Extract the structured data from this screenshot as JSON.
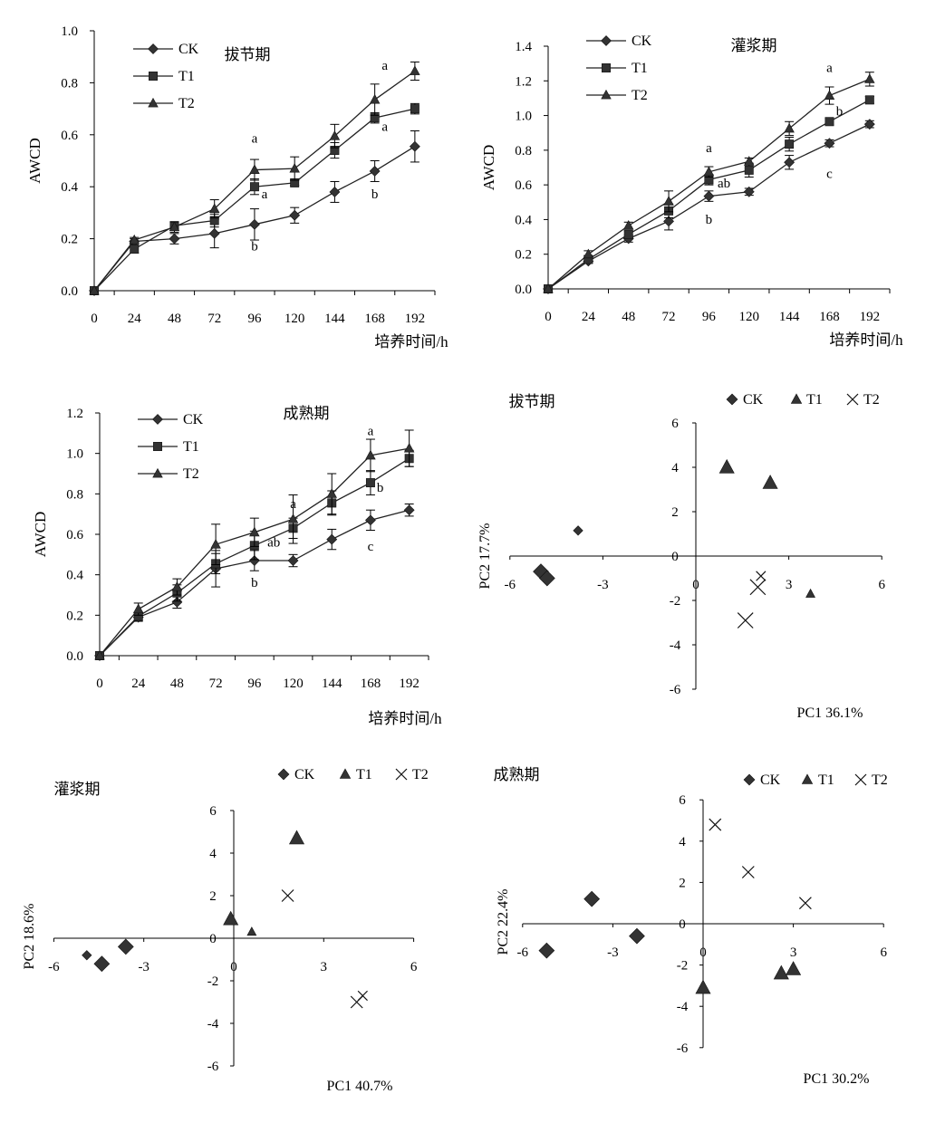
{
  "chart_data": [
    {
      "type": "line",
      "title": "拔节期",
      "xlabel": "培养时间/h",
      "ylabel": "AWCD",
      "x": [
        0,
        24,
        48,
        72,
        96,
        120,
        144,
        168,
        192
      ],
      "xlim": [
        0,
        204
      ],
      "ylim": [
        0,
        1.0
      ],
      "yticks": [
        "0.0",
        "0.2",
        "0.4",
        "0.6",
        "0.8",
        "1.0"
      ],
      "grid": false,
      "legend_position": "top-left",
      "series": [
        {
          "name": "CK",
          "marker": "diamond",
          "values": [
            0,
            0.19,
            0.2,
            0.22,
            0.255,
            0.29,
            0.38,
            0.46,
            0.555
          ],
          "errors": [
            0,
            0.01,
            0.02,
            0.055,
            0.06,
            0.03,
            0.04,
            0.04,
            0.06
          ]
        },
        {
          "name": "T1",
          "marker": "square",
          "values": [
            0,
            0.16,
            0.25,
            0.27,
            0.4,
            0.415,
            0.54,
            0.665,
            0.7
          ],
          "errors": [
            0,
            0.015,
            0.015,
            0.025,
            0.03,
            0.01,
            0.03,
            0.02,
            0.02
          ]
        },
        {
          "name": "T2",
          "marker": "triangle",
          "values": [
            0,
            0.195,
            0.245,
            0.315,
            0.465,
            0.47,
            0.595,
            0.735,
            0.845
          ],
          "errors": [
            0,
            0.01,
            0.02,
            0.035,
            0.04,
            0.045,
            0.045,
            0.06,
            0.035
          ]
        }
      ],
      "annotations": [
        {
          "text": "a",
          "x": 96,
          "y": 0.57
        },
        {
          "text": "a",
          "x": 102,
          "y": 0.355
        },
        {
          "text": "b",
          "x": 96,
          "y": 0.155
        },
        {
          "text": "a",
          "x": 174,
          "y": 0.85
        },
        {
          "text": "a",
          "x": 174,
          "y": 0.615
        },
        {
          "text": "b",
          "x": 168,
          "y": 0.355
        }
      ]
    },
    {
      "type": "line",
      "title": "灌浆期",
      "xlabel": "培养时间/h",
      "ylabel": "AWCD",
      "x": [
        0,
        24,
        48,
        72,
        96,
        120,
        144,
        168,
        192
      ],
      "xlim": [
        0,
        204
      ],
      "ylim": [
        0,
        1.4
      ],
      "yticks": [
        "0.0",
        "0.2",
        "0.4",
        "0.6",
        "0.8",
        "1.0",
        "1.2",
        "1.4"
      ],
      "grid": false,
      "legend_position": "top-left",
      "series": [
        {
          "name": "CK",
          "marker": "diamond",
          "values": [
            0,
            0.16,
            0.29,
            0.39,
            0.535,
            0.56,
            0.73,
            0.84,
            0.95
          ],
          "errors": [
            0,
            0.01,
            0.02,
            0.05,
            0.03,
            0.02,
            0.04,
            0.02,
            0.02
          ]
        },
        {
          "name": "T1",
          "marker": "square",
          "values": [
            0,
            0.17,
            0.315,
            0.45,
            0.63,
            0.685,
            0.835,
            0.965,
            1.09
          ],
          "errors": [
            0,
            0.02,
            0.02,
            0.04,
            0.03,
            0.04,
            0.04,
            0.02,
            0.02
          ]
        },
        {
          "name": "T2",
          "marker": "triangle",
          "values": [
            0,
            0.2,
            0.365,
            0.505,
            0.675,
            0.735,
            0.925,
            1.115,
            1.21
          ],
          "errors": [
            0,
            0.02,
            0.02,
            0.06,
            0.03,
            0.02,
            0.04,
            0.05,
            0.04
          ]
        }
      ],
      "annotations": [
        {
          "text": "a",
          "x": 96,
          "y": 0.79
        },
        {
          "text": "ab",
          "x": 105,
          "y": 0.585
        },
        {
          "text": "b",
          "x": 96,
          "y": 0.375
        },
        {
          "text": "a",
          "x": 168,
          "y": 1.25
        },
        {
          "text": "b",
          "x": 174,
          "y": 1.0
        },
        {
          "text": "c",
          "x": 168,
          "y": 0.64
        }
      ]
    },
    {
      "type": "line",
      "title": "成熟期",
      "xlabel": "培养时间/h",
      "ylabel": "AWCD",
      "x": [
        0,
        24,
        48,
        72,
        96,
        120,
        144,
        168,
        192
      ],
      "xlim": [
        0,
        204
      ],
      "ylim": [
        0,
        1.2
      ],
      "yticks": [
        "0.0",
        "0.2",
        "0.4",
        "0.6",
        "0.8",
        "1.0",
        "1.2"
      ],
      "grid": false,
      "legend_position": "top-left",
      "series": [
        {
          "name": "CK",
          "marker": "diamond",
          "values": [
            0,
            0.19,
            0.265,
            0.43,
            0.47,
            0.47,
            0.575,
            0.67,
            0.72
          ],
          "errors": [
            0,
            0.02,
            0.03,
            0.09,
            0.05,
            0.03,
            0.05,
            0.05,
            0.03
          ]
        },
        {
          "name": "T1",
          "marker": "square",
          "values": [
            0,
            0.195,
            0.31,
            0.455,
            0.545,
            0.63,
            0.755,
            0.855,
            0.975
          ],
          "errors": [
            0,
            0.02,
            0.04,
            0.05,
            0.07,
            0.05,
            0.06,
            0.06,
            0.04
          ]
        },
        {
          "name": "T2",
          "marker": "triangle",
          "values": [
            0,
            0.23,
            0.34,
            0.55,
            0.61,
            0.675,
            0.8,
            0.99,
            1.025
          ],
          "errors": [
            0,
            0.03,
            0.04,
            0.1,
            0.07,
            0.12,
            0.1,
            0.08,
            0.09
          ]
        }
      ],
      "annotations": [
        {
          "text": "a",
          "x": 168,
          "y": 1.09
        },
        {
          "text": "a",
          "x": 120,
          "y": 0.73
        },
        {
          "text": "ab",
          "x": 108,
          "y": 0.54
        },
        {
          "text": "b",
          "x": 174,
          "y": 0.81
        },
        {
          "text": "b",
          "x": 96,
          "y": 0.34
        },
        {
          "text": "c",
          "x": 168,
          "y": 0.52
        }
      ]
    },
    {
      "type": "scatter",
      "title": "拔节期",
      "xlabel": "PC1 36.1%",
      "ylabel": "PC2 17.7%",
      "xlim": [
        -6,
        6
      ],
      "ylim": [
        -6,
        6
      ],
      "xticks": [
        -6,
        -3,
        0,
        3,
        6
      ],
      "yticks": [
        -6,
        -4,
        -2,
        0,
        2,
        4,
        6
      ],
      "legend_position": "top",
      "series": [
        {
          "name": "CK",
          "marker": "diamond",
          "points": [
            [
              -5,
              -0.7,
              1.3
            ],
            [
              -4.8,
              -1.0,
              1.3
            ],
            [
              -3.8,
              1.15,
              0.8
            ]
          ]
        },
        {
          "name": "T1",
          "marker": "triangle",
          "points": [
            [
              1.0,
              4.0,
              1.3
            ],
            [
              2.4,
              3.3,
              1.3
            ],
            [
              3.7,
              -1.7,
              0.8
            ]
          ]
        },
        {
          "name": "T2",
          "marker": "cross",
          "points": [
            [
              2.1,
              -0.9,
              0.8
            ],
            [
              2.0,
              -1.4,
              1.3
            ],
            [
              1.6,
              -2.9,
              1.3
            ]
          ]
        }
      ]
    },
    {
      "type": "scatter",
      "title": "灌浆期",
      "xlabel": "PC1 40.7%",
      "ylabel": "PC2 18.6%",
      "xlim": [
        -6,
        6
      ],
      "ylim": [
        -6,
        6
      ],
      "xticks": [
        -6,
        -3,
        0,
        3,
        6
      ],
      "yticks": [
        -6,
        -4,
        -2,
        0,
        2,
        4,
        6
      ],
      "legend_position": "top",
      "series": [
        {
          "name": "CK",
          "marker": "diamond",
          "points": [
            [
              -4.9,
              -0.8,
              0.8
            ],
            [
              -4.4,
              -1.2,
              1.3
            ],
            [
              -3.6,
              -0.4,
              1.3
            ]
          ]
        },
        {
          "name": "T1",
          "marker": "triangle",
          "points": [
            [
              2.1,
              4.7,
              1.3
            ],
            [
              -0.1,
              0.9,
              1.3
            ],
            [
              0.6,
              0.3,
              0.8
            ]
          ]
        },
        {
          "name": "T2",
          "marker": "cross",
          "points": [
            [
              1.8,
              2.0,
              1.0
            ],
            [
              4.1,
              -3.0,
              1.0
            ],
            [
              4.3,
              -2.7,
              0.8
            ]
          ]
        }
      ]
    },
    {
      "type": "scatter",
      "title": "成熟期",
      "xlabel": "PC1 30.2%",
      "ylabel": "PC2 22.4%",
      "xlim": [
        -6,
        6
      ],
      "ylim": [
        -6,
        6
      ],
      "xticks": [
        -6,
        -3,
        0,
        3,
        6
      ],
      "yticks": [
        -6,
        -4,
        -2,
        0,
        2,
        4,
        6
      ],
      "legend_position": "top",
      "series": [
        {
          "name": "CK",
          "marker": "diamond",
          "points": [
            [
              -5.2,
              -1.3,
              1.3
            ],
            [
              -3.7,
              1.2,
              1.3
            ],
            [
              -2.2,
              -0.6,
              1.3
            ]
          ]
        },
        {
          "name": "T1",
          "marker": "triangle",
          "points": [
            [
              0.0,
              -3.1,
              1.3
            ],
            [
              2.6,
              -2.4,
              1.3
            ],
            [
              3.0,
              -2.2,
              1.3
            ]
          ]
        },
        {
          "name": "T2",
          "marker": "cross",
          "points": [
            [
              0.4,
              4.8,
              1.0
            ],
            [
              1.5,
              2.5,
              1.0
            ],
            [
              3.4,
              1.0,
              1.0
            ]
          ]
        }
      ]
    }
  ]
}
